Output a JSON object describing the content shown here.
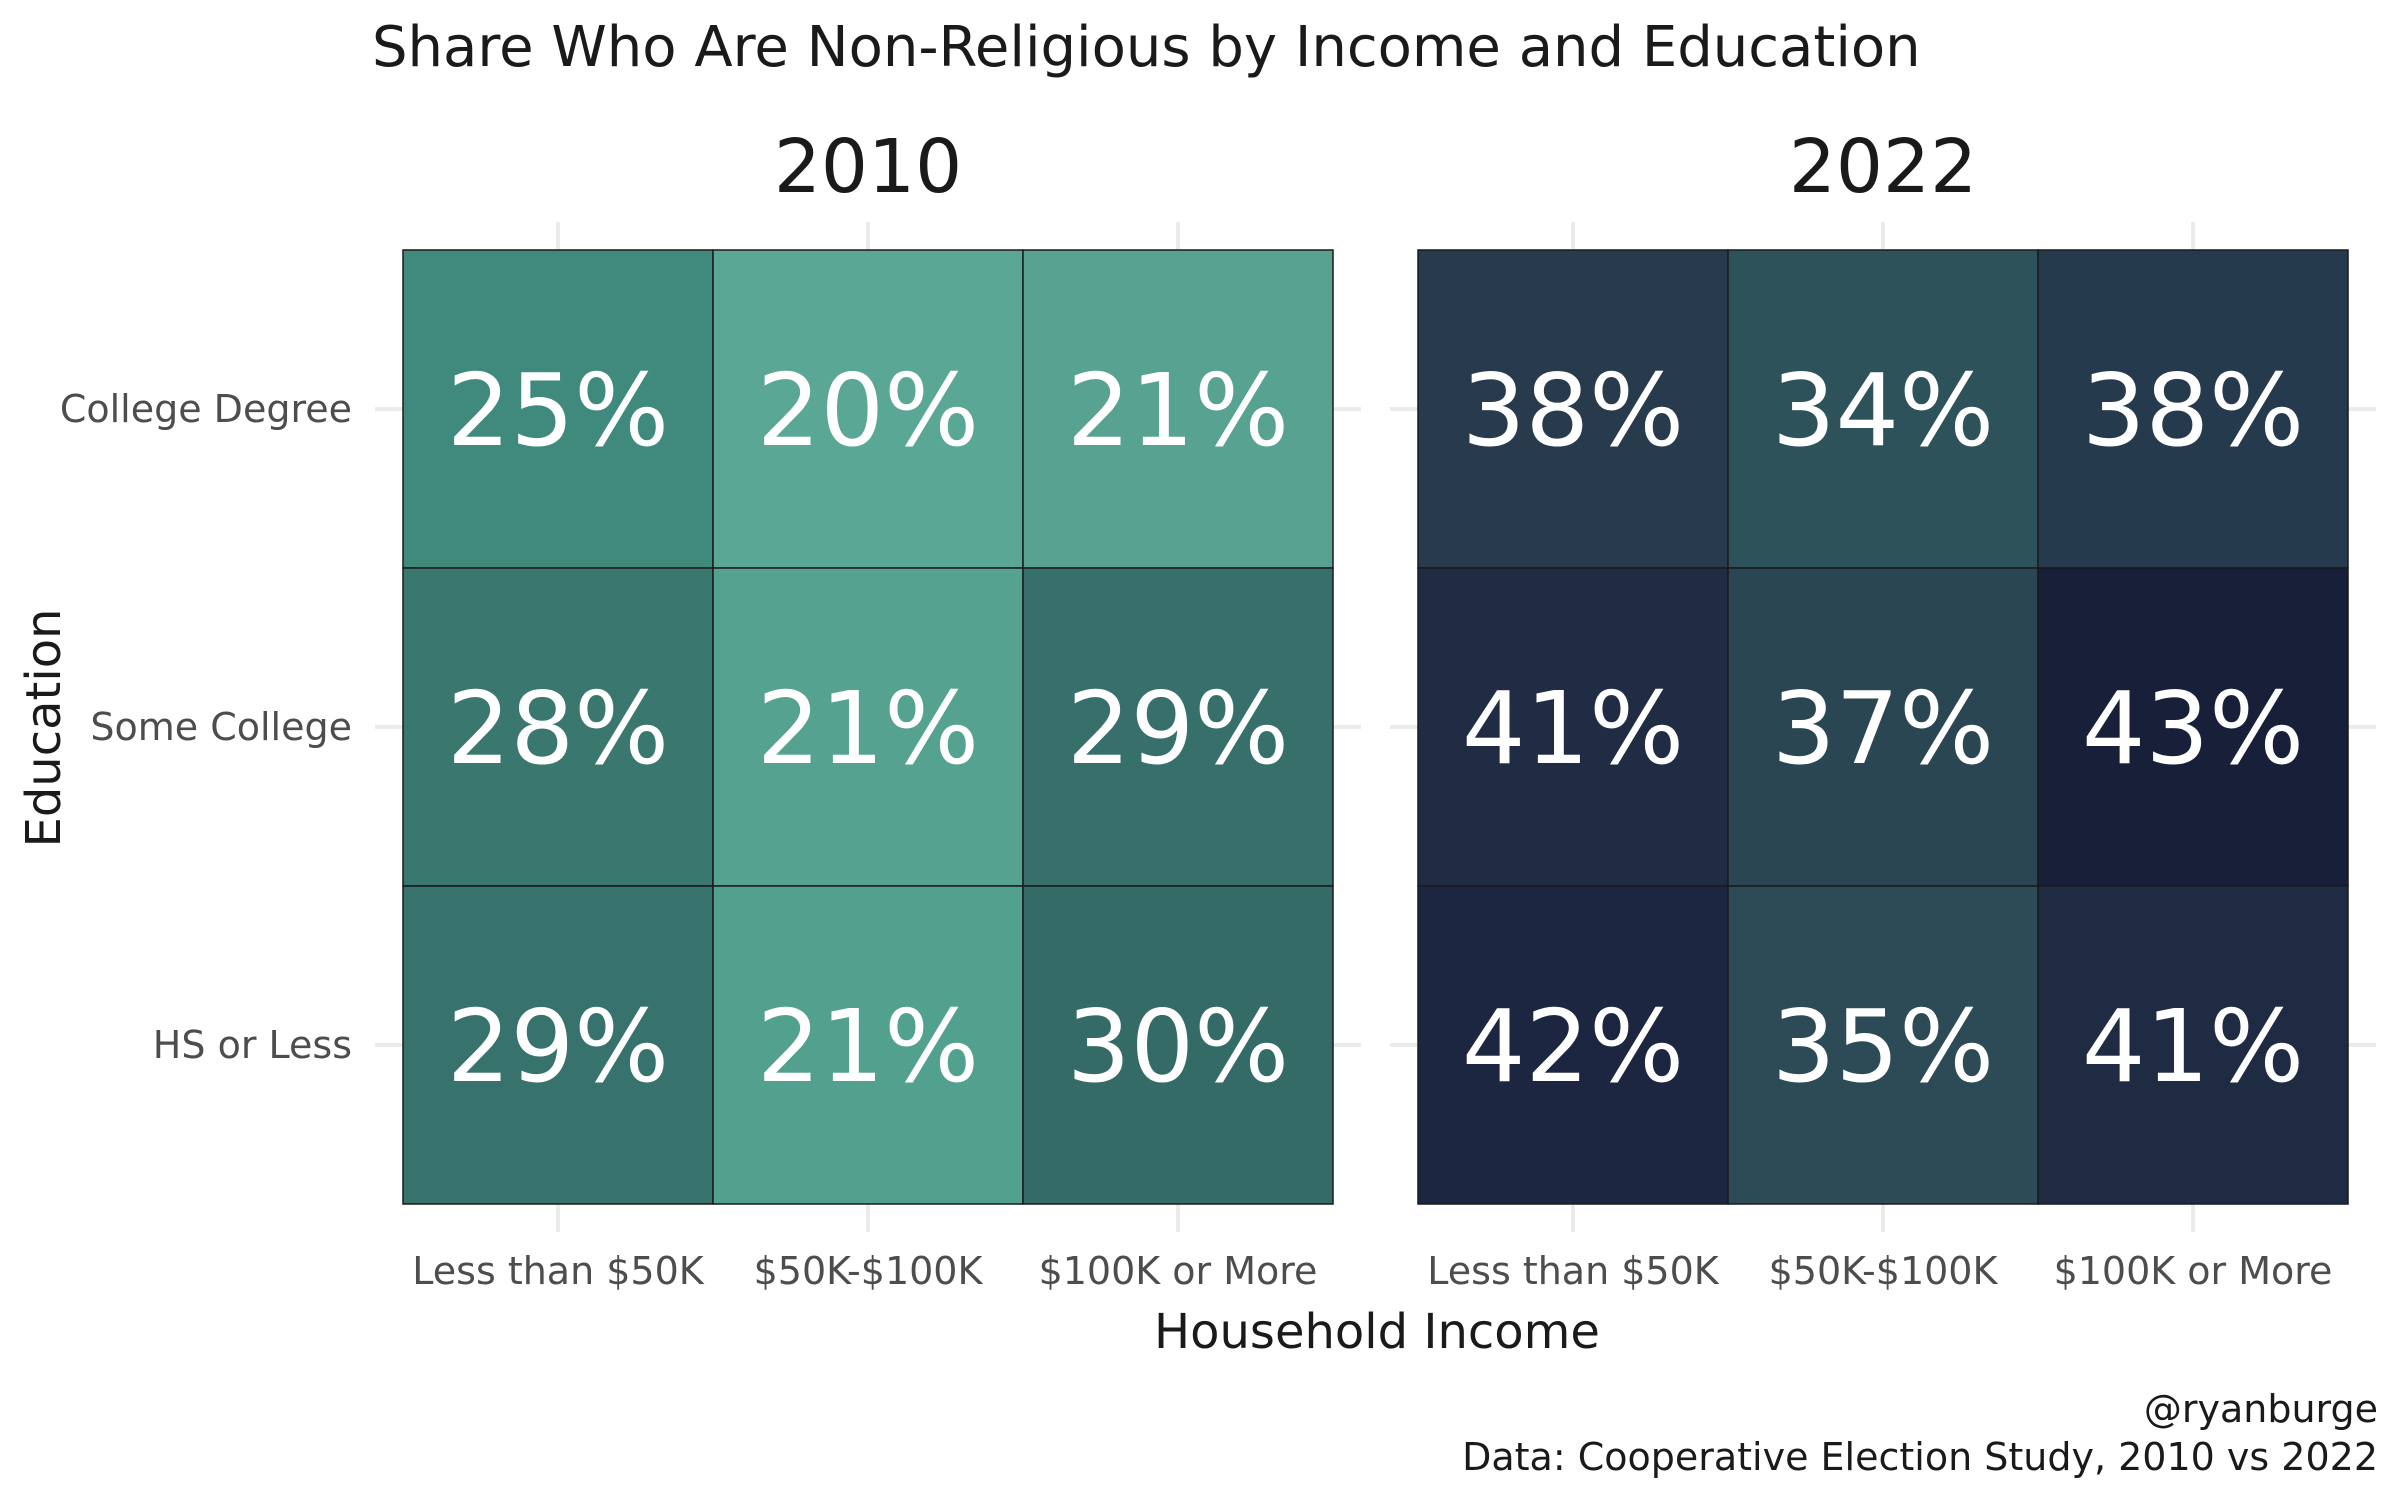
{
  "chart_data": {
    "type": "heatmap",
    "title": "Share Who Are Non-Religious by Income and Education",
    "xlabel": "Household Income",
    "ylabel": "Education",
    "x_categories": [
      "Less than $50K",
      "$50K-$100K",
      "$100K or More"
    ],
    "y_categories": [
      "College Degree",
      "Some College",
      "HS or Less"
    ],
    "panels": [
      {
        "name": "2010",
        "values": [
          [
            25,
            20,
            21
          ],
          [
            28,
            21,
            29
          ],
          [
            29,
            21,
            30
          ]
        ],
        "labels": [
          [
            "25%",
            "20%",
            "21%"
          ],
          [
            "28%",
            "21%",
            "29%"
          ],
          [
            "29%",
            "21%",
            "30%"
          ]
        ],
        "colors": [
          [
            "#3f8a7d",
            "#5aa796",
            "#57a291"
          ],
          [
            "#3a776f",
            "#55a290",
            "#37706b"
          ],
          [
            "#37726c",
            "#52a08e",
            "#356b67"
          ]
        ]
      },
      {
        "name": "2022",
        "values": [
          [
            38,
            34,
            38
          ],
          [
            41,
            37,
            43
          ],
          [
            42,
            35,
            41
          ]
        ],
        "labels": [
          [
            "38%",
            "34%",
            "38%"
          ],
          [
            "41%",
            "37%",
            "43%"
          ],
          [
            "42%",
            "35%",
            "41%"
          ]
        ],
        "colors": [
          [
            "#273b4d",
            "#2e525a",
            "#263a4d"
          ],
          [
            "#1f2c44",
            "#2a4652",
            "#181f38"
          ],
          [
            "#1c2640",
            "#2d4b56",
            "#1f2b43"
          ]
        ]
      }
    ],
    "grid": true,
    "legend": "none"
  },
  "caption": {
    "line1": "@ryanburge",
    "line2": "Data: Cooperative Election Study, 2010 vs 2022"
  }
}
